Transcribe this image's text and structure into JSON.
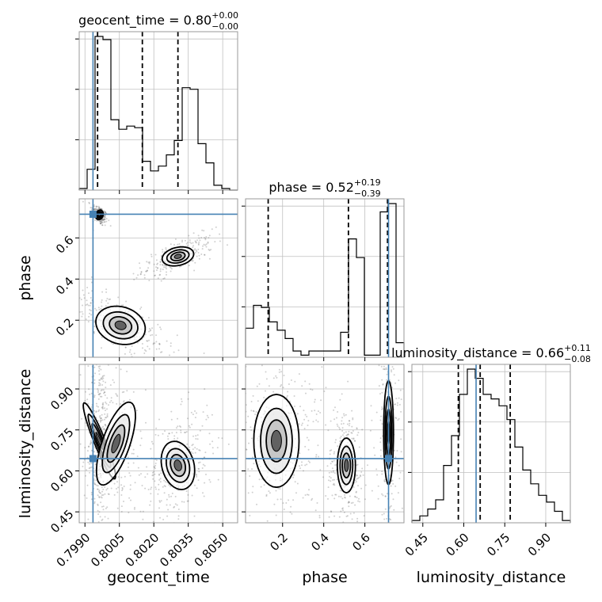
{
  "chart_data": {
    "type": "corner",
    "parameters": [
      "geocent_time",
      "phase",
      "luminosity_distance"
    ],
    "injection": {
      "geocent_time": 0.79935,
      "phase": 0.715,
      "luminosity_distance": 0.645
    },
    "titles": {
      "geocent_time": {
        "label": "geocent_time = 0.80",
        "plus": "+0.00",
        "minus": "−0.00"
      },
      "phase": {
        "label": "phase = 0.52",
        "plus": "+0.19",
        "minus": "−0.39"
      },
      "luminosity_distance": {
        "label": "luminosity_distance = 0.66",
        "plus": "+0.11",
        "minus": "−0.08"
      }
    },
    "axis_labels": {
      "geocent_time": "geocent_time",
      "phase": "phase",
      "luminosity_distance": "luminosity_distance"
    },
    "ranges": {
      "geocent_time": [
        0.79875,
        0.80565
      ],
      "phase": [
        0.02,
        0.79
      ],
      "luminosity_distance": [
        0.41,
        0.99
      ]
    },
    "ticks": {
      "geocent_time": {
        "values": [
          0.799,
          0.8005,
          0.802,
          0.8035,
          0.805
        ],
        "labels": [
          "0.7990",
          "0.8005",
          "0.8020",
          "0.8035",
          "0.8050"
        ]
      },
      "phase": {
        "values": [
          0.2,
          0.4,
          0.6
        ],
        "labels": [
          "0.2",
          "0.4",
          "0.6"
        ]
      },
      "luminosity_distance": {
        "values": [
          0.45,
          0.6,
          0.75,
          0.9
        ],
        "labels": [
          "0.45",
          "0.60",
          "0.75",
          "0.90"
        ]
      }
    },
    "quantiles": {
      "geocent_time": [
        0.79955,
        0.8015,
        0.80305
      ],
      "phase": [
        0.13,
        0.52,
        0.71
      ],
      "luminosity_distance": [
        0.58,
        0.66,
        0.77
      ]
    },
    "histograms": {
      "geocent_time": {
        "edges": [
          0.79875,
          0.80565
        ],
        "counts": [
          1,
          13,
          96,
          94,
          44,
          38,
          40,
          39,
          18,
          12,
          15,
          22,
          31,
          64,
          63,
          29,
          17,
          3,
          1,
          0
        ]
      },
      "phase": {
        "edges": [
          0.02,
          0.79
        ],
        "counts": [
          14,
          25,
          24,
          17,
          13,
          9,
          3,
          1,
          3,
          3,
          3,
          3,
          12,
          57,
          48,
          1,
          1,
          70,
          74,
          7
        ]
      },
      "luminosity_distance": {
        "edges": [
          0.41,
          0.99
        ],
        "counts": [
          1,
          3,
          6,
          10,
          25,
          38,
          56,
          67,
          63,
          56,
          54,
          51,
          45,
          33,
          23,
          17,
          12,
          9,
          5,
          1
        ]
      }
    },
    "clusters": {
      "phase_vs_geocent_time": [
        {
          "x": 0.79963,
          "y": 0.712,
          "sx": 8e-05,
          "sy": 0.012,
          "rho": -0.5,
          "n": 220
        },
        {
          "x": 0.80305,
          "y": 0.51,
          "sx": 0.00035,
          "sy": 0.022,
          "rho": 0.7,
          "n": 260
        },
        {
          "x": 0.80055,
          "y": 0.175,
          "sx": 0.00055,
          "sy": 0.045,
          "rho": -0.75,
          "n": 300
        }
      ],
      "luminosity_distance_vs_geocent_time": [
        {
          "x": 0.79963,
          "y": 0.71,
          "sx": 0.00012,
          "sy": 0.075,
          "rho": 0.1,
          "n": 320
        },
        {
          "x": 0.80035,
          "y": 0.7,
          "sx": 0.0003,
          "sy": 0.08,
          "rho": -0.2,
          "n": 200
        },
        {
          "x": 0.80305,
          "y": 0.62,
          "sx": 0.00035,
          "sy": 0.045,
          "rho": 0.3,
          "n": 330
        }
      ],
      "luminosity_distance_vs_phase": [
        {
          "x": 0.17,
          "y": 0.71,
          "sx": 0.055,
          "sy": 0.085,
          "rho": 0.0,
          "n": 380
        },
        {
          "x": 0.51,
          "y": 0.62,
          "sx": 0.022,
          "sy": 0.05,
          "rho": 0.0,
          "n": 280
        },
        {
          "x": 0.715,
          "y": 0.74,
          "sx": 0.012,
          "sy": 0.095,
          "rho": 0.0,
          "n": 300
        }
      ]
    },
    "colors": {
      "truth": "#4682b4",
      "hist": "#000000",
      "grid": "#c0c0c0",
      "scatter": "#555555"
    },
    "grid": true
  }
}
